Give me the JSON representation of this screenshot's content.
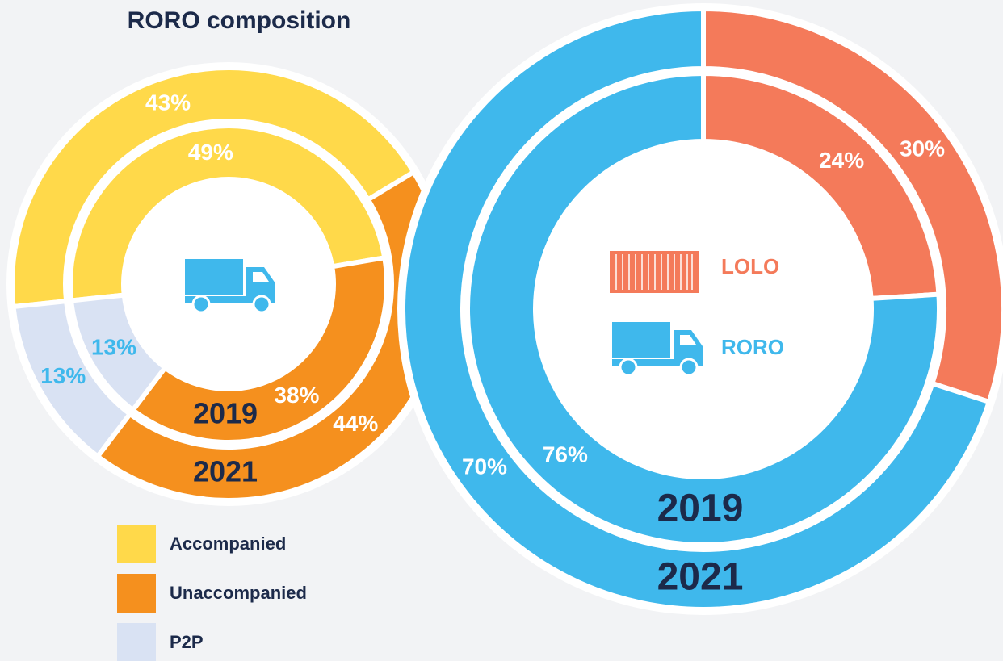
{
  "chart_data": [
    {
      "type": "donut",
      "title": "RORO composition",
      "categories": [
        "Accompanied",
        "Unaccompanied",
        "P2P"
      ],
      "colors": [
        "#ffd94a",
        "#f5901e",
        "#d9e2f3"
      ],
      "label_colors": [
        "#ffffff",
        "#ffffff",
        "#3fb8ec"
      ],
      "series": [
        {
          "name": "2019",
          "values": [
            49,
            38,
            13
          ],
          "value_labels": [
            "49%",
            "38%",
            "13%"
          ]
        },
        {
          "name": "2021",
          "values": [
            43,
            44,
            13
          ],
          "value_labels": [
            "43%",
            "44%",
            "13%"
          ]
        }
      ]
    },
    {
      "type": "donut",
      "categories": [
        "LOLO",
        "RORO"
      ],
      "colors": [
        "#f47a5a",
        "#3fb8ec"
      ],
      "label_colors": [
        "#ffffff",
        "#ffffff"
      ],
      "series": [
        {
          "name": "2019",
          "values": [
            24,
            76
          ],
          "value_labels": [
            "24%",
            "76%"
          ]
        },
        {
          "name": "2021",
          "values": [
            30,
            70
          ],
          "value_labels": [
            "30%",
            "70%"
          ]
        }
      ]
    }
  ]
}
